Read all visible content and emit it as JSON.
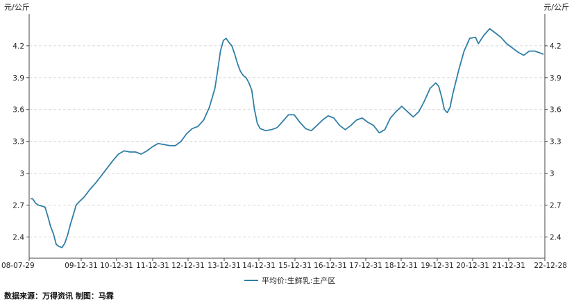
{
  "chart_data": {
    "type": "line",
    "title": "",
    "unit_left": "元/公斤",
    "unit_right": "元/公斤",
    "y_ticks": [
      "2.4",
      "2.7",
      "3",
      "3.3",
      "3.6",
      "3.9",
      "4.2"
    ],
    "ylim": [
      2.2,
      4.5
    ],
    "x_ticks": [
      "08-07-29",
      "09-12-31",
      "10-12-31",
      "11-12-31",
      "12-12-31",
      "13-12-31",
      "14-12-31",
      "15-12-31",
      "16-12-31",
      "17-12-31",
      "18-12-31",
      "19-12-31",
      "20-12-31",
      "21-12-31",
      "22-12-28"
    ],
    "xlim": [
      "2008-07-29",
      "2022-12-28"
    ],
    "grid": "horizontal-dashed",
    "legend_position": "bottom-center",
    "series": [
      {
        "name": "平均价:生鲜乳:主产区",
        "color": "#2f7ea6",
        "points": [
          [
            "2008-07-29",
            2.76
          ],
          [
            "2008-08-20",
            2.76
          ],
          [
            "2008-09-20",
            2.72
          ],
          [
            "2008-10-20",
            2.7
          ],
          [
            "2008-12-01",
            2.69
          ],
          [
            "2009-01-01",
            2.68
          ],
          [
            "2009-02-01",
            2.59
          ],
          [
            "2009-03-01",
            2.5
          ],
          [
            "2009-04-01",
            2.43
          ],
          [
            "2009-05-01",
            2.33
          ],
          [
            "2009-06-01",
            2.31
          ],
          [
            "2009-07-01",
            2.3
          ],
          [
            "2009-08-01",
            2.34
          ],
          [
            "2009-09-01",
            2.42
          ],
          [
            "2009-10-01",
            2.52
          ],
          [
            "2009-11-01",
            2.61
          ],
          [
            "2009-12-01",
            2.7
          ],
          [
            "2010-01-01",
            2.73
          ],
          [
            "2010-03-01",
            2.78
          ],
          [
            "2010-05-01",
            2.85
          ],
          [
            "2010-07-01",
            2.91
          ],
          [
            "2010-09-01",
            2.98
          ],
          [
            "2010-11-01",
            3.05
          ],
          [
            "2011-01-01",
            3.12
          ],
          [
            "2011-03-01",
            3.18
          ],
          [
            "2011-05-01",
            3.21
          ],
          [
            "2011-07-01",
            3.2
          ],
          [
            "2011-09-01",
            3.2
          ],
          [
            "2011-11-01",
            3.18
          ],
          [
            "2012-01-01",
            3.21
          ],
          [
            "2012-03-01",
            3.25
          ],
          [
            "2012-05-01",
            3.28
          ],
          [
            "2012-07-01",
            3.27
          ],
          [
            "2012-09-01",
            3.26
          ],
          [
            "2012-11-01",
            3.26
          ],
          [
            "2013-01-01",
            3.3
          ],
          [
            "2013-03-01",
            3.37
          ],
          [
            "2013-05-01",
            3.42
          ],
          [
            "2013-07-01",
            3.44
          ],
          [
            "2013-09-01",
            3.5
          ],
          [
            "2013-11-01",
            3.62
          ],
          [
            "2014-01-01",
            3.8
          ],
          [
            "2014-02-01",
            3.98
          ],
          [
            "2014-03-01",
            4.15
          ],
          [
            "2014-04-01",
            4.25
          ],
          [
            "2014-05-01",
            4.27
          ],
          [
            "2014-06-01",
            4.23
          ],
          [
            "2014-07-01",
            4.2
          ],
          [
            "2014-08-01",
            4.12
          ],
          [
            "2014-09-01",
            4.03
          ],
          [
            "2014-10-01",
            3.96
          ],
          [
            "2014-11-01",
            3.92
          ],
          [
            "2014-12-01",
            3.9
          ],
          [
            "2015-01-01",
            3.85
          ],
          [
            "2015-02-01",
            3.78
          ],
          [
            "2015-03-01",
            3.6
          ],
          [
            "2015-04-01",
            3.47
          ],
          [
            "2015-05-01",
            3.42
          ],
          [
            "2015-07-01",
            3.4
          ],
          [
            "2015-09-01",
            3.41
          ],
          [
            "2015-11-01",
            3.43
          ],
          [
            "2016-01-01",
            3.49
          ],
          [
            "2016-03-01",
            3.55
          ],
          [
            "2016-05-01",
            3.55
          ],
          [
            "2016-07-01",
            3.48
          ],
          [
            "2016-09-01",
            3.42
          ],
          [
            "2016-11-01",
            3.4
          ],
          [
            "2017-01-01",
            3.45
          ],
          [
            "2017-03-01",
            3.5
          ],
          [
            "2017-05-01",
            3.54
          ],
          [
            "2017-07-01",
            3.52
          ],
          [
            "2017-09-01",
            3.45
          ],
          [
            "2017-11-01",
            3.41
          ],
          [
            "2018-01-01",
            3.45
          ],
          [
            "2018-03-01",
            3.5
          ],
          [
            "2018-05-01",
            3.52
          ],
          [
            "2018-07-01",
            3.48
          ],
          [
            "2018-09-01",
            3.45
          ],
          [
            "2018-11-01",
            3.38
          ],
          [
            "2019-01-01",
            3.41
          ],
          [
            "2019-03-01",
            3.52
          ],
          [
            "2019-05-01",
            3.58
          ],
          [
            "2019-07-01",
            3.63
          ],
          [
            "2019-09-01",
            3.58
          ],
          [
            "2019-11-01",
            3.53
          ],
          [
            "2020-01-01",
            3.58
          ],
          [
            "2020-03-01",
            3.68
          ],
          [
            "2020-05-01",
            3.8
          ],
          [
            "2020-07-01",
            3.85
          ],
          [
            "2020-08-01",
            3.82
          ],
          [
            "2020-09-01",
            3.72
          ],
          [
            "2020-10-01",
            3.6
          ],
          [
            "2020-11-01",
            3.57
          ],
          [
            "2020-12-01",
            3.62
          ],
          [
            "2021-01-01",
            3.75
          ],
          [
            "2021-03-01",
            3.96
          ],
          [
            "2021-05-01",
            4.15
          ],
          [
            "2021-07-01",
            4.27
          ],
          [
            "2021-09-01",
            4.28
          ],
          [
            "2021-10-01",
            4.22
          ],
          [
            "2021-12-01",
            4.3
          ],
          [
            "2022-02-01",
            4.36
          ],
          [
            "2022-04-01",
            4.32
          ],
          [
            "2022-06-01",
            4.28
          ],
          [
            "2022-08-01",
            4.22
          ],
          [
            "2022-10-01",
            4.18
          ],
          [
            "2022-12-01",
            4.14
          ],
          [
            "2023-02-01",
            4.11
          ],
          [
            "2023-04-01",
            4.15
          ],
          [
            "2023-06-01",
            4.15
          ],
          [
            "2023-08-01",
            4.13
          ],
          [
            "2023-09-01",
            4.12
          ]
        ]
      }
    ]
  },
  "footer": {
    "source": "数据来源：万得资讯  制图：马霖"
  }
}
